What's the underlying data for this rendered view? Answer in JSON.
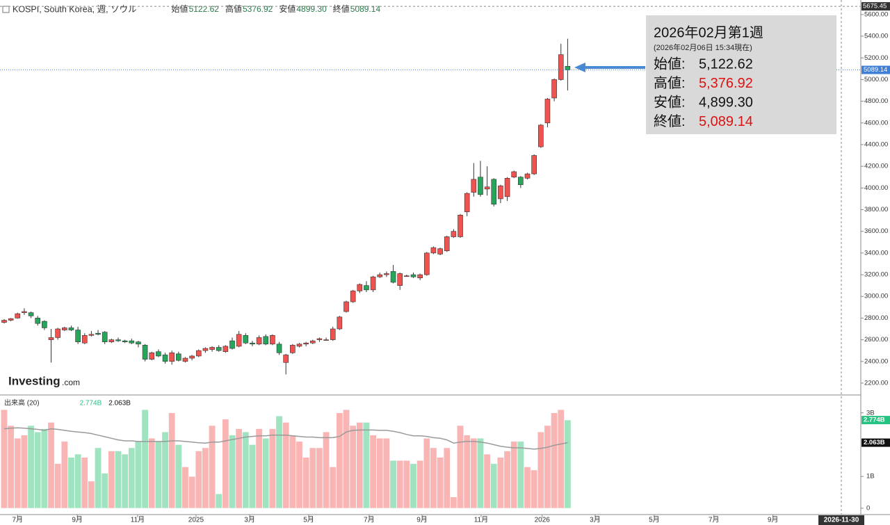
{
  "header": {
    "logo": "Investing",
    "logo_suffix": ".com"
  },
  "chart_data": [
    {
      "type": "candlestick",
      "legend": {
        "name": "KOSPI, South Korea, 週, ソウル",
        "items": [
          {
            "label": "始値",
            "value": "5122.62"
          },
          {
            "label": "高値",
            "value": "5376.92"
          },
          {
            "label": "安値",
            "value": "4899.30"
          },
          {
            "label": "終値",
            "value": "5089.14"
          }
        ]
      },
      "up_color": "#ef5350",
      "down_color": "#26a65b",
      "open": [
        2760,
        2780,
        2800,
        2850,
        2850,
        2800,
        2770,
        2600,
        2620,
        2690,
        2710,
        2690,
        2570,
        2640,
        2660,
        2670,
        2580,
        2600,
        2590,
        2590,
        2580,
        2550,
        2420,
        2490,
        2460,
        2400,
        2470,
        2400,
        2430,
        2450,
        2500,
        2510,
        2530,
        2490,
        2590,
        2540,
        2640,
        2570,
        2560,
        2630,
        2560,
        2560,
        2390,
        2480,
        2540,
        2560,
        2570,
        2600,
        2600,
        2600,
        2700,
        2860,
        2950,
        3050,
        3100,
        3060,
        3180,
        3200,
        3230,
        3100,
        3190,
        3200,
        3170,
        3200,
        3400,
        3390,
        3420,
        3550,
        3550,
        3780,
        3960,
        4100,
        3990,
        4080,
        3900,
        3920,
        4100,
        4100,
        4090,
        4130,
        4380,
        4600,
        4830,
        5000,
        5122.62
      ],
      "high": [
        2790,
        2800,
        2850,
        2890,
        2860,
        2820,
        2780,
        2700,
        2710,
        2720,
        2730,
        2720,
        2660,
        2680,
        2690,
        2680,
        2610,
        2620,
        2600,
        2610,
        2590,
        2560,
        2490,
        2510,
        2480,
        2500,
        2490,
        2440,
        2460,
        2510,
        2530,
        2540,
        2550,
        2550,
        2620,
        2680,
        2660,
        2590,
        2640,
        2650,
        2650,
        2580,
        2470,
        2560,
        2570,
        2580,
        2600,
        2620,
        2620,
        2720,
        2820,
        2960,
        3060,
        3120,
        3140,
        3190,
        3220,
        3230,
        3290,
        3220,
        3200,
        3220,
        3210,
        3410,
        3460,
        3450,
        3560,
        3620,
        3760,
        3960,
        4230,
        4250,
        4200,
        4090,
        4030,
        4100,
        4160,
        4110,
        4140,
        4310,
        4590,
        4830,
        5010,
        5330,
        5376.92
      ],
      "low": [
        2750,
        2770,
        2795,
        2830,
        2800,
        2730,
        2690,
        2390,
        2600,
        2680,
        2680,
        2560,
        2560,
        2630,
        2640,
        2560,
        2570,
        2580,
        2570,
        2560,
        2530,
        2400,
        2410,
        2440,
        2380,
        2370,
        2400,
        2390,
        2410,
        2440,
        2480,
        2490,
        2490,
        2480,
        2510,
        2530,
        2560,
        2540,
        2550,
        2550,
        2550,
        2460,
        2280,
        2470,
        2530,
        2540,
        2560,
        2580,
        2590,
        2590,
        2690,
        2850,
        2940,
        3030,
        3040,
        3040,
        3170,
        3180,
        3120,
        3060,
        3180,
        3170,
        3150,
        3190,
        3390,
        3380,
        3410,
        3540,
        3540,
        3740,
        3920,
        3920,
        3930,
        3830,
        3860,
        3880,
        4090,
        4000,
        4080,
        4120,
        4370,
        4560,
        4800,
        4990,
        4899.3
      ],
      "close": [
        2780,
        2795,
        2840,
        2860,
        2820,
        2750,
        2710,
        2620,
        2700,
        2710,
        2690,
        2580,
        2640,
        2650,
        2650,
        2580,
        2600,
        2590,
        2580,
        2570,
        2560,
        2420,
        2480,
        2450,
        2400,
        2480,
        2410,
        2430,
        2450,
        2500,
        2520,
        2530,
        2500,
        2540,
        2520,
        2650,
        2570,
        2560,
        2620,
        2560,
        2640,
        2480,
        2460,
        2550,
        2560,
        2570,
        2590,
        2610,
        2600,
        2700,
        2810,
        2950,
        3050,
        3110,
        3060,
        3180,
        3200,
        3210,
        3130,
        3210,
        3190,
        3180,
        3200,
        3400,
        3450,
        3440,
        3550,
        3600,
        3750,
        3950,
        4080,
        3940,
        4010,
        3850,
        4020,
        4090,
        4150,
        4030,
        4130,
        4300,
        4580,
        4820,
        5000,
        5230,
        5089.14
      ],
      "ylim": [
        2097,
        5734
      ],
      "yticks": [
        {
          "value": 2200,
          "label": "2200.00"
        },
        {
          "value": 2400,
          "label": "2400.00"
        },
        {
          "value": 2600,
          "label": "2600.00"
        },
        {
          "value": 2800,
          "label": "2800.00"
        },
        {
          "value": 3000,
          "label": "3000.00"
        },
        {
          "value": 3200,
          "label": "3200.00"
        },
        {
          "value": 3400,
          "label": "3400.00"
        },
        {
          "value": 3600,
          "label": "3600.00"
        },
        {
          "value": 3800,
          "label": "3800.00"
        },
        {
          "value": 4000,
          "label": "4000.00"
        },
        {
          "value": 4200,
          "label": "4200.00"
        },
        {
          "value": 4400,
          "label": "4400.00"
        },
        {
          "value": 4600,
          "label": "4600.00"
        },
        {
          "value": 4800,
          "label": "4800.00"
        },
        {
          "value": 5000,
          "label": "5000.00"
        },
        {
          "value": 5200,
          "label": "5200.00"
        },
        {
          "value": 5400,
          "label": "5400.00"
        },
        {
          "value": 5600,
          "label": "5600.00"
        }
      ],
      "xlim": [
        -0.62,
        127.7
      ],
      "xticks": [
        {
          "value": 2,
          "label": "7月"
        },
        {
          "value": 10.9,
          "label": "9月"
        },
        {
          "value": 19.9,
          "label": "11月"
        },
        {
          "value": 28.6,
          "label": "2025"
        },
        {
          "value": 36.6,
          "label": "3月"
        },
        {
          "value": 45.4,
          "label": "5月"
        },
        {
          "value": 54.4,
          "label": "7月"
        },
        {
          "value": 62.3,
          "label": "9月"
        },
        {
          "value": 71.1,
          "label": "11月"
        },
        {
          "value": 80.2,
          "label": "2026"
        },
        {
          "value": 88.1,
          "label": "3月"
        },
        {
          "value": 96.9,
          "label": "5月"
        },
        {
          "value": 105.8,
          "label": "7月"
        },
        {
          "value": 114.6,
          "label": "9月"
        }
      ],
      "last_label": "5089.14",
      "last_color": "#3f7fd8",
      "crosshair": {
        "y": {
          "value": 5675.45,
          "label": "5675.45"
        },
        "x": {
          "value": 124.8,
          "label": "2026-11-30"
        }
      },
      "tooltip": {
        "title": "2026年02月第1週",
        "subtitle": "(2026年02月06日 15:34現在)",
        "rows": [
          {
            "label": "始値:",
            "value": "5,122.62",
            "color": "#111111"
          },
          {
            "label": "高値:",
            "value": "5,376.92",
            "color": "#dd1111"
          },
          {
            "label": "安値:",
            "value": "4,899.30",
            "color": "#111111"
          },
          {
            "label": "終値:",
            "value": "5,089.14",
            "color": "#dd1111"
          }
        ]
      }
    },
    {
      "type": "bar",
      "title": "出来高 (20)",
      "values": [
        3.1,
        2.6,
        2.2,
        2.3,
        2.6,
        2.4,
        2.5,
        2.7,
        1.4,
        2.1,
        1.6,
        1.7,
        1.6,
        0.85,
        1.9,
        1.1,
        1.8,
        1.8,
        1.7,
        1.9,
        2.1,
        3.1,
        2.2,
        2.1,
        2.4,
        3.0,
        2.0,
        1.3,
        1.0,
        1.8,
        1.9,
        2.6,
        0.45,
        2.8,
        2.3,
        2.5,
        2.4,
        2.0,
        2.5,
        2.2,
        2.5,
        2.9,
        2.7,
        2.3,
        2.1,
        1.6,
        1.9,
        1.9,
        2.4,
        1.3,
        3.0,
        3.1,
        2.6,
        2.7,
        2.7,
        2.3,
        2.2,
        2.2,
        1.5,
        1.5,
        1.5,
        1.4,
        1.5,
        2.2,
        1.9,
        1.6,
        1.9,
        0.35,
        2.6,
        2.3,
        2.2,
        2.2,
        1.7,
        1.4,
        1.6,
        1.8,
        2.1,
        2.1,
        1.3,
        1.2,
        2.4,
        2.6,
        3.0,
        3.1,
        2.774
      ],
      "up_color": "#f9b4b4",
      "down_color": "#9fe3c0",
      "ma": {
        "color": "#9a9a9a",
        "values": [
          2.5,
          2.52,
          2.53,
          2.52,
          2.5,
          2.48,
          2.45,
          2.5,
          2.48,
          2.45,
          2.42,
          2.4,
          2.38,
          2.35,
          2.3,
          2.25,
          2.2,
          2.15,
          2.12,
          2.12,
          2.1,
          2.1,
          2.1,
          2.1,
          2.1,
          2.12,
          2.12,
          2.1,
          2.08,
          2.06,
          2.05,
          2.08,
          2.08,
          2.12,
          2.16,
          2.2,
          2.24,
          2.26,
          2.28,
          2.28,
          2.3,
          2.3,
          2.3,
          2.28,
          2.26,
          2.24,
          2.24,
          2.22,
          2.22,
          2.22,
          2.26,
          2.4,
          2.45,
          2.46,
          2.46,
          2.46,
          2.45,
          2.45,
          2.42,
          2.38,
          2.32,
          2.28,
          2.28,
          2.26,
          2.22,
          2.2,
          2.15,
          2.05,
          2.08,
          2.1,
          2.1,
          2.08,
          2.05,
          2.0,
          1.95,
          1.92,
          1.9,
          1.9,
          1.88,
          1.86,
          1.88,
          1.92,
          1.98,
          2.02,
          2.063
        ]
      },
      "ylim": [
        -0.2,
        3.52
      ],
      "yticks": [
        {
          "value": 3,
          "label": "3B"
        },
        {
          "value": 1,
          "label": "1B"
        },
        0
      ],
      "markers": [
        {
          "value": 2.774,
          "label": "2.774B",
          "color": "#26c281"
        },
        {
          "value": 2.063,
          "label": "2.063B",
          "color": "#111111"
        }
      ]
    }
  ]
}
